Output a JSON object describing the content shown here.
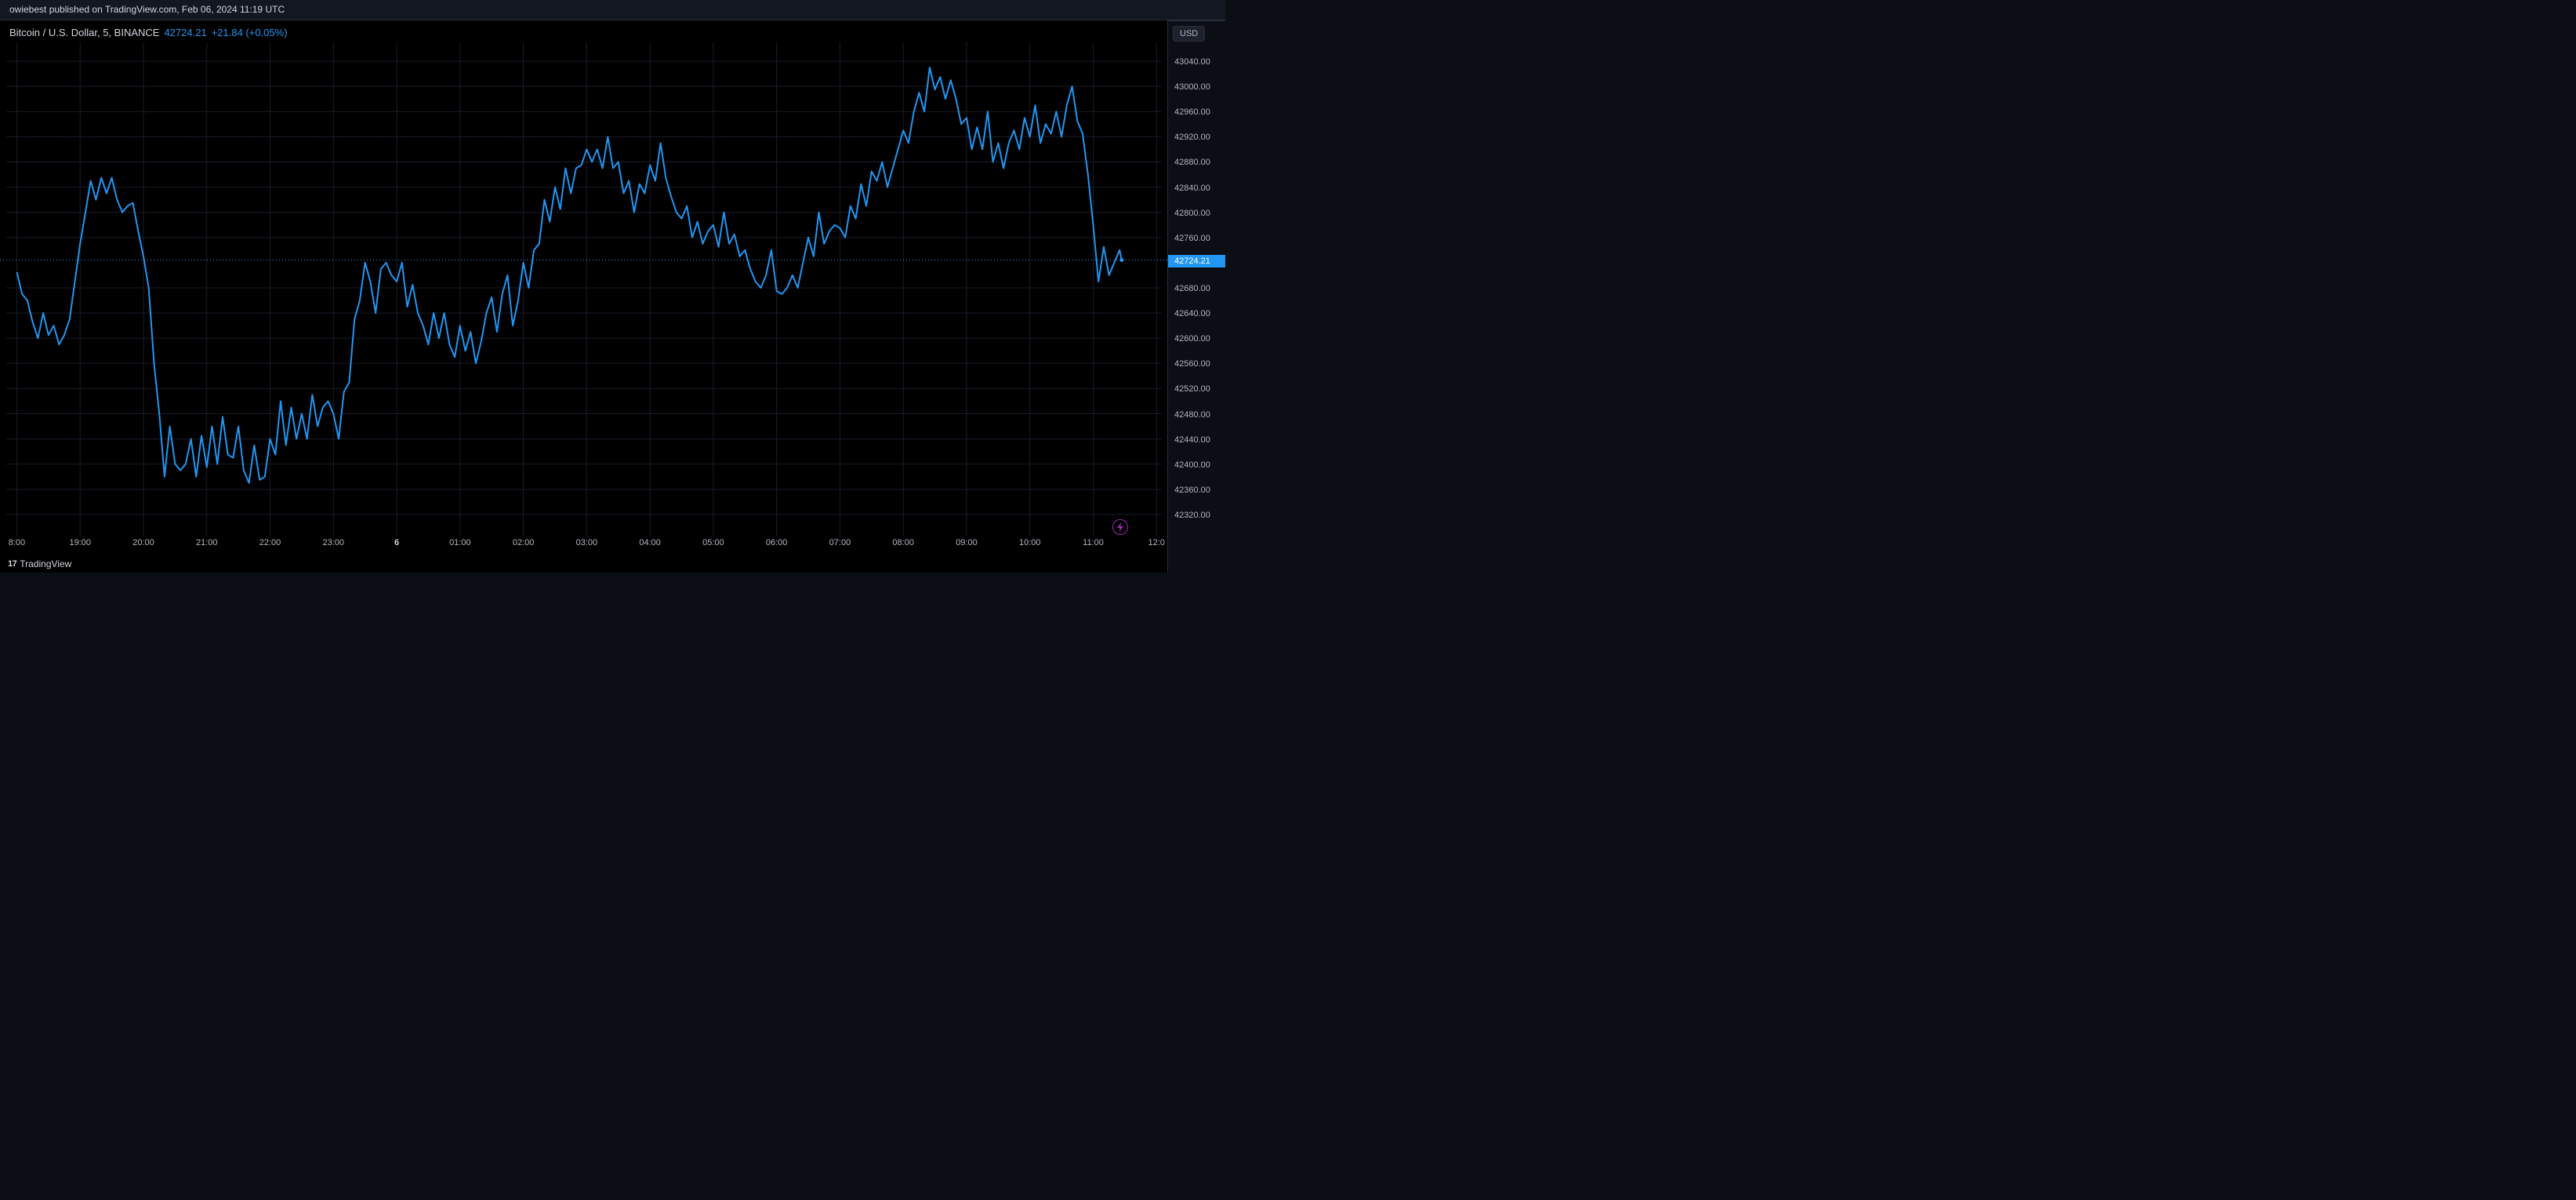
{
  "header": {
    "publish_text": "owiebest published on TradingView.com, Feb 06, 2024 11:19 UTC"
  },
  "legend": {
    "symbol": "Bitcoin / U.S. Dollar, 5, BINANCE",
    "price": "42724.21",
    "change": "+21.84 (+0.05%)"
  },
  "footer": {
    "logo": "17",
    "brand": "TradingView"
  },
  "y_axis": {
    "currency": "USD",
    "ticks": [
      43040.0,
      43000.0,
      42960.0,
      42920.0,
      42880.0,
      42840.0,
      42800.0,
      42760.0,
      42680.0,
      42640.0,
      42600.0,
      42560.0,
      42520.0,
      42480.0,
      42440.0,
      42400.0,
      42360.0,
      42320.0
    ],
    "current_price": 42724.21,
    "current_label": "42724.21",
    "min": 42290,
    "max": 43070
  },
  "x_axis": {
    "ticks": [
      {
        "label": "8:00",
        "minute": 0,
        "bold": false
      },
      {
        "label": "19:00",
        "minute": 60,
        "bold": false
      },
      {
        "label": "20:00",
        "minute": 120,
        "bold": false
      },
      {
        "label": "21:00",
        "minute": 180,
        "bold": false
      },
      {
        "label": "22:00",
        "minute": 240,
        "bold": false
      },
      {
        "label": "23:00",
        "minute": 300,
        "bold": false
      },
      {
        "label": "6",
        "minute": 360,
        "bold": true
      },
      {
        "label": "01:00",
        "minute": 420,
        "bold": false
      },
      {
        "label": "02:00",
        "minute": 480,
        "bold": false
      },
      {
        "label": "03:00",
        "minute": 540,
        "bold": false
      },
      {
        "label": "04:00",
        "minute": 600,
        "bold": false
      },
      {
        "label": "05:00",
        "minute": 660,
        "bold": false
      },
      {
        "label": "06:00",
        "minute": 720,
        "bold": false
      },
      {
        "label": "07:00",
        "minute": 780,
        "bold": false
      },
      {
        "label": "08:00",
        "minute": 840,
        "bold": false
      },
      {
        "label": "09:00",
        "minute": 900,
        "bold": false
      },
      {
        "label": "10:00",
        "minute": 960,
        "bold": false
      },
      {
        "label": "11:00",
        "minute": 1020,
        "bold": false
      },
      {
        "label": "12:0",
        "minute": 1080,
        "bold": false
      }
    ],
    "min_minute": -10,
    "max_minute": 1085
  },
  "chart": {
    "type": "line",
    "line_color": "#2196f3",
    "line_width": 2,
    "background_color": "#000000",
    "grid_color": "#1a1d29",
    "data": [
      [
        0,
        42705
      ],
      [
        5,
        42670
      ],
      [
        10,
        42660
      ],
      [
        15,
        42625
      ],
      [
        20,
        42600
      ],
      [
        25,
        42640
      ],
      [
        30,
        42605
      ],
      [
        35,
        42620
      ],
      [
        40,
        42590
      ],
      [
        45,
        42605
      ],
      [
        50,
        42630
      ],
      [
        55,
        42690
      ],
      [
        60,
        42750
      ],
      [
        65,
        42800
      ],
      [
        70,
        42850
      ],
      [
        75,
        42820
      ],
      [
        80,
        42855
      ],
      [
        85,
        42830
      ],
      [
        90,
        42855
      ],
      [
        95,
        42820
      ],
      [
        100,
        42800
      ],
      [
        105,
        42810
      ],
      [
        110,
        42815
      ],
      [
        115,
        42770
      ],
      [
        120,
        42730
      ],
      [
        125,
        42680
      ],
      [
        130,
        42560
      ],
      [
        135,
        42480
      ],
      [
        140,
        42380
      ],
      [
        145,
        42460
      ],
      [
        150,
        42400
      ],
      [
        155,
        42390
      ],
      [
        160,
        42400
      ],
      [
        165,
        42440
      ],
      [
        170,
        42380
      ],
      [
        175,
        42445
      ],
      [
        180,
        42395
      ],
      [
        185,
        42460
      ],
      [
        190,
        42400
      ],
      [
        195,
        42475
      ],
      [
        200,
        42415
      ],
      [
        205,
        42410
      ],
      [
        210,
        42460
      ],
      [
        215,
        42390
      ],
      [
        220,
        42370
      ],
      [
        225,
        42430
      ],
      [
        230,
        42375
      ],
      [
        235,
        42380
      ],
      [
        240,
        42440
      ],
      [
        245,
        42415
      ],
      [
        250,
        42500
      ],
      [
        255,
        42430
      ],
      [
        260,
        42490
      ],
      [
        265,
        42440
      ],
      [
        270,
        42480
      ],
      [
        275,
        42440
      ],
      [
        280,
        42510
      ],
      [
        285,
        42460
      ],
      [
        290,
        42490
      ],
      [
        295,
        42500
      ],
      [
        300,
        42480
      ],
      [
        305,
        42440
      ],
      [
        310,
        42515
      ],
      [
        315,
        42530
      ],
      [
        320,
        42630
      ],
      [
        325,
        42660
      ],
      [
        330,
        42720
      ],
      [
        335,
        42690
      ],
      [
        340,
        42640
      ],
      [
        345,
        42710
      ],
      [
        350,
        42720
      ],
      [
        355,
        42700
      ],
      [
        360,
        42690
      ],
      [
        365,
        42720
      ],
      [
        370,
        42650
      ],
      [
        375,
        42685
      ],
      [
        380,
        42640
      ],
      [
        385,
        42620
      ],
      [
        390,
        42590
      ],
      [
        395,
        42640
      ],
      [
        400,
        42600
      ],
      [
        405,
        42640
      ],
      [
        410,
        42590
      ],
      [
        415,
        42570
      ],
      [
        420,
        42620
      ],
      [
        425,
        42580
      ],
      [
        430,
        42610
      ],
      [
        435,
        42560
      ],
      [
        440,
        42595
      ],
      [
        445,
        42640
      ],
      [
        450,
        42665
      ],
      [
        455,
        42610
      ],
      [
        460,
        42670
      ],
      [
        465,
        42700
      ],
      [
        470,
        42620
      ],
      [
        475,
        42660
      ],
      [
        480,
        42720
      ],
      [
        485,
        42680
      ],
      [
        490,
        42740
      ],
      [
        495,
        42750
      ],
      [
        500,
        42820
      ],
      [
        505,
        42785
      ],
      [
        510,
        42840
      ],
      [
        515,
        42805
      ],
      [
        520,
        42870
      ],
      [
        525,
        42830
      ],
      [
        530,
        42870
      ],
      [
        535,
        42875
      ],
      [
        540,
        42900
      ],
      [
        545,
        42880
      ],
      [
        550,
        42900
      ],
      [
        555,
        42870
      ],
      [
        560,
        42920
      ],
      [
        565,
        42870
      ],
      [
        570,
        42880
      ],
      [
        575,
        42830
      ],
      [
        580,
        42850
      ],
      [
        585,
        42800
      ],
      [
        590,
        42845
      ],
      [
        595,
        42830
      ],
      [
        600,
        42875
      ],
      [
        605,
        42850
      ],
      [
        610,
        42910
      ],
      [
        615,
        42855
      ],
      [
        620,
        42825
      ],
      [
        625,
        42800
      ],
      [
        630,
        42790
      ],
      [
        635,
        42810
      ],
      [
        640,
        42760
      ],
      [
        645,
        42785
      ],
      [
        650,
        42750
      ],
      [
        655,
        42770
      ],
      [
        660,
        42780
      ],
      [
        665,
        42745
      ],
      [
        670,
        42800
      ],
      [
        675,
        42750
      ],
      [
        680,
        42765
      ],
      [
        685,
        42730
      ],
      [
        690,
        42740
      ],
      [
        695,
        42710
      ],
      [
        700,
        42690
      ],
      [
        705,
        42680
      ],
      [
        710,
        42700
      ],
      [
        715,
        42740
      ],
      [
        720,
        42675
      ],
      [
        725,
        42670
      ],
      [
        730,
        42680
      ],
      [
        735,
        42700
      ],
      [
        740,
        42680
      ],
      [
        745,
        42720
      ],
      [
        750,
        42760
      ],
      [
        755,
        42730
      ],
      [
        760,
        42800
      ],
      [
        765,
        42750
      ],
      [
        770,
        42770
      ],
      [
        775,
        42780
      ],
      [
        780,
        42775
      ],
      [
        785,
        42760
      ],
      [
        790,
        42810
      ],
      [
        795,
        42790
      ],
      [
        800,
        42845
      ],
      [
        805,
        42810
      ],
      [
        810,
        42865
      ],
      [
        815,
        42850
      ],
      [
        820,
        42880
      ],
      [
        825,
        42840
      ],
      [
        830,
        42870
      ],
      [
        835,
        42900
      ],
      [
        840,
        42930
      ],
      [
        845,
        42910
      ],
      [
        850,
        42960
      ],
      [
        855,
        42990
      ],
      [
        860,
        42960
      ],
      [
        865,
        43030
      ],
      [
        870,
        42995
      ],
      [
        875,
        43015
      ],
      [
        880,
        42980
      ],
      [
        885,
        43010
      ],
      [
        890,
        42980
      ],
      [
        895,
        42940
      ],
      [
        900,
        42950
      ],
      [
        905,
        42900
      ],
      [
        910,
        42935
      ],
      [
        915,
        42900
      ],
      [
        920,
        42960
      ],
      [
        925,
        42880
      ],
      [
        930,
        42910
      ],
      [
        935,
        42870
      ],
      [
        940,
        42910
      ],
      [
        945,
        42930
      ],
      [
        950,
        42900
      ],
      [
        955,
        42950
      ],
      [
        960,
        42920
      ],
      [
        965,
        42970
      ],
      [
        970,
        42910
      ],
      [
        975,
        42940
      ],
      [
        980,
        42925
      ],
      [
        985,
        42960
      ],
      [
        990,
        42920
      ],
      [
        995,
        42970
      ],
      [
        1000,
        43000
      ],
      [
        1005,
        42945
      ],
      [
        1010,
        42925
      ],
      [
        1015,
        42860
      ],
      [
        1020,
        42780
      ],
      [
        1025,
        42690
      ],
      [
        1030,
        42745
      ],
      [
        1035,
        42700
      ],
      [
        1040,
        42720
      ],
      [
        1045,
        42740
      ],
      [
        1047,
        42724.21
      ]
    ]
  },
  "colors": {
    "bg": "#0c0e15",
    "chart_bg": "#000000",
    "border": "#2a2e39",
    "text": "#d1d4dc",
    "text_muted": "#b2b5be",
    "accent": "#2196f3",
    "lightning": "#9b27af"
  }
}
